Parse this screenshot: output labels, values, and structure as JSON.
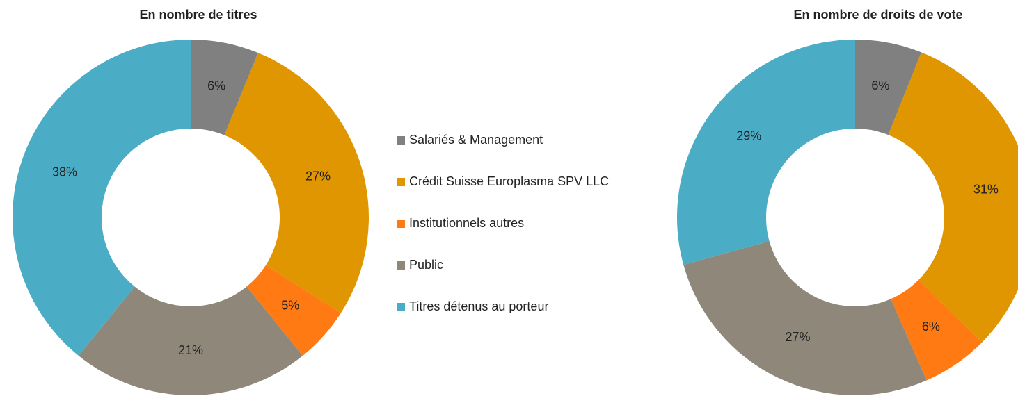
{
  "chart_data": [
    {
      "type": "pie",
      "title": "En nombre de titres",
      "categories": [
        "Salariés & Management",
        "Crédit Suisse Europlasma SPV LLC",
        "Institutionnels autres",
        "Public",
        "Titres détenus au porteur"
      ],
      "values": [
        6,
        27,
        5,
        21,
        38
      ],
      "value_labels": [
        "6%",
        "27%",
        "5%",
        "21%",
        "38%"
      ],
      "colors": [
        "#808080",
        "#e09600",
        "#ff7a12",
        "#8f887a",
        "#4bacc6"
      ]
    },
    {
      "type": "pie",
      "title": "En nombre de droits de vote",
      "categories": [
        "Salariés & Management",
        "Crédit Suisse Europlasma SPV LLC",
        "Institutionnels autres",
        "Public",
        "Titres détenus au porteur"
      ],
      "values": [
        6,
        31,
        6,
        27,
        29
      ],
      "value_labels": [
        "6%",
        "31%",
        "6%",
        "27%",
        "29%"
      ],
      "colors": [
        "#808080",
        "#e09600",
        "#ff7a12",
        "#8f887a",
        "#4bacc6"
      ]
    }
  ]
}
